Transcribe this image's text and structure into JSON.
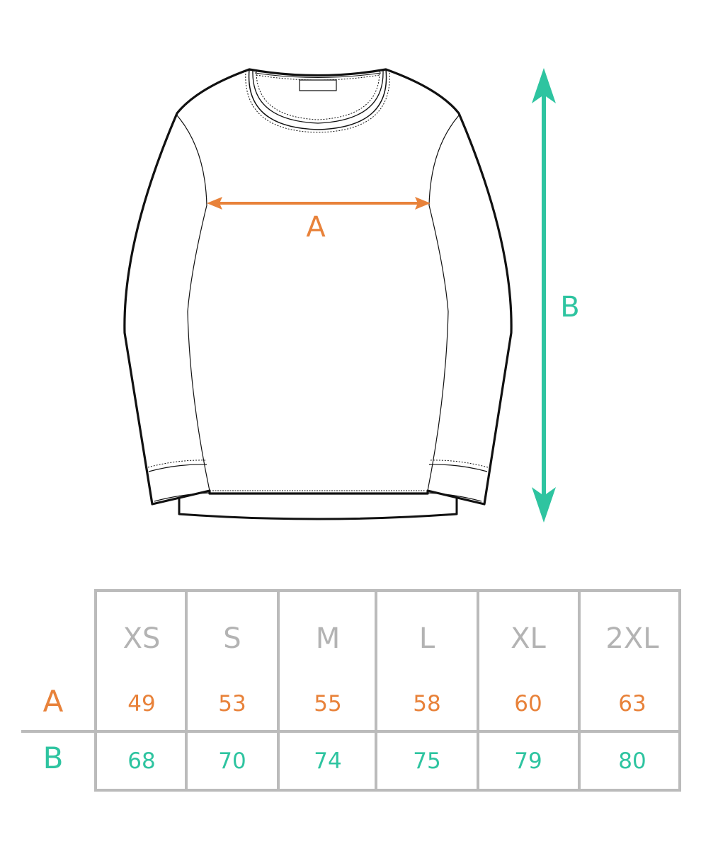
{
  "diagram": {
    "measure_a": {
      "label": "A",
      "color": "#e8823a"
    },
    "measure_b": {
      "label": "B",
      "color": "#2ec4a0"
    }
  },
  "size_table": {
    "sizes": [
      "XS",
      "S",
      "M",
      "L",
      "XL",
      "2XL"
    ],
    "rows": [
      {
        "label": "A",
        "values": [
          "49",
          "53",
          "55",
          "58",
          "60",
          "63"
        ]
      },
      {
        "label": "B",
        "values": [
          "68",
          "70",
          "74",
          "75",
          "79",
          "80"
        ]
      }
    ],
    "grid_color": "#bbbbbb"
  }
}
